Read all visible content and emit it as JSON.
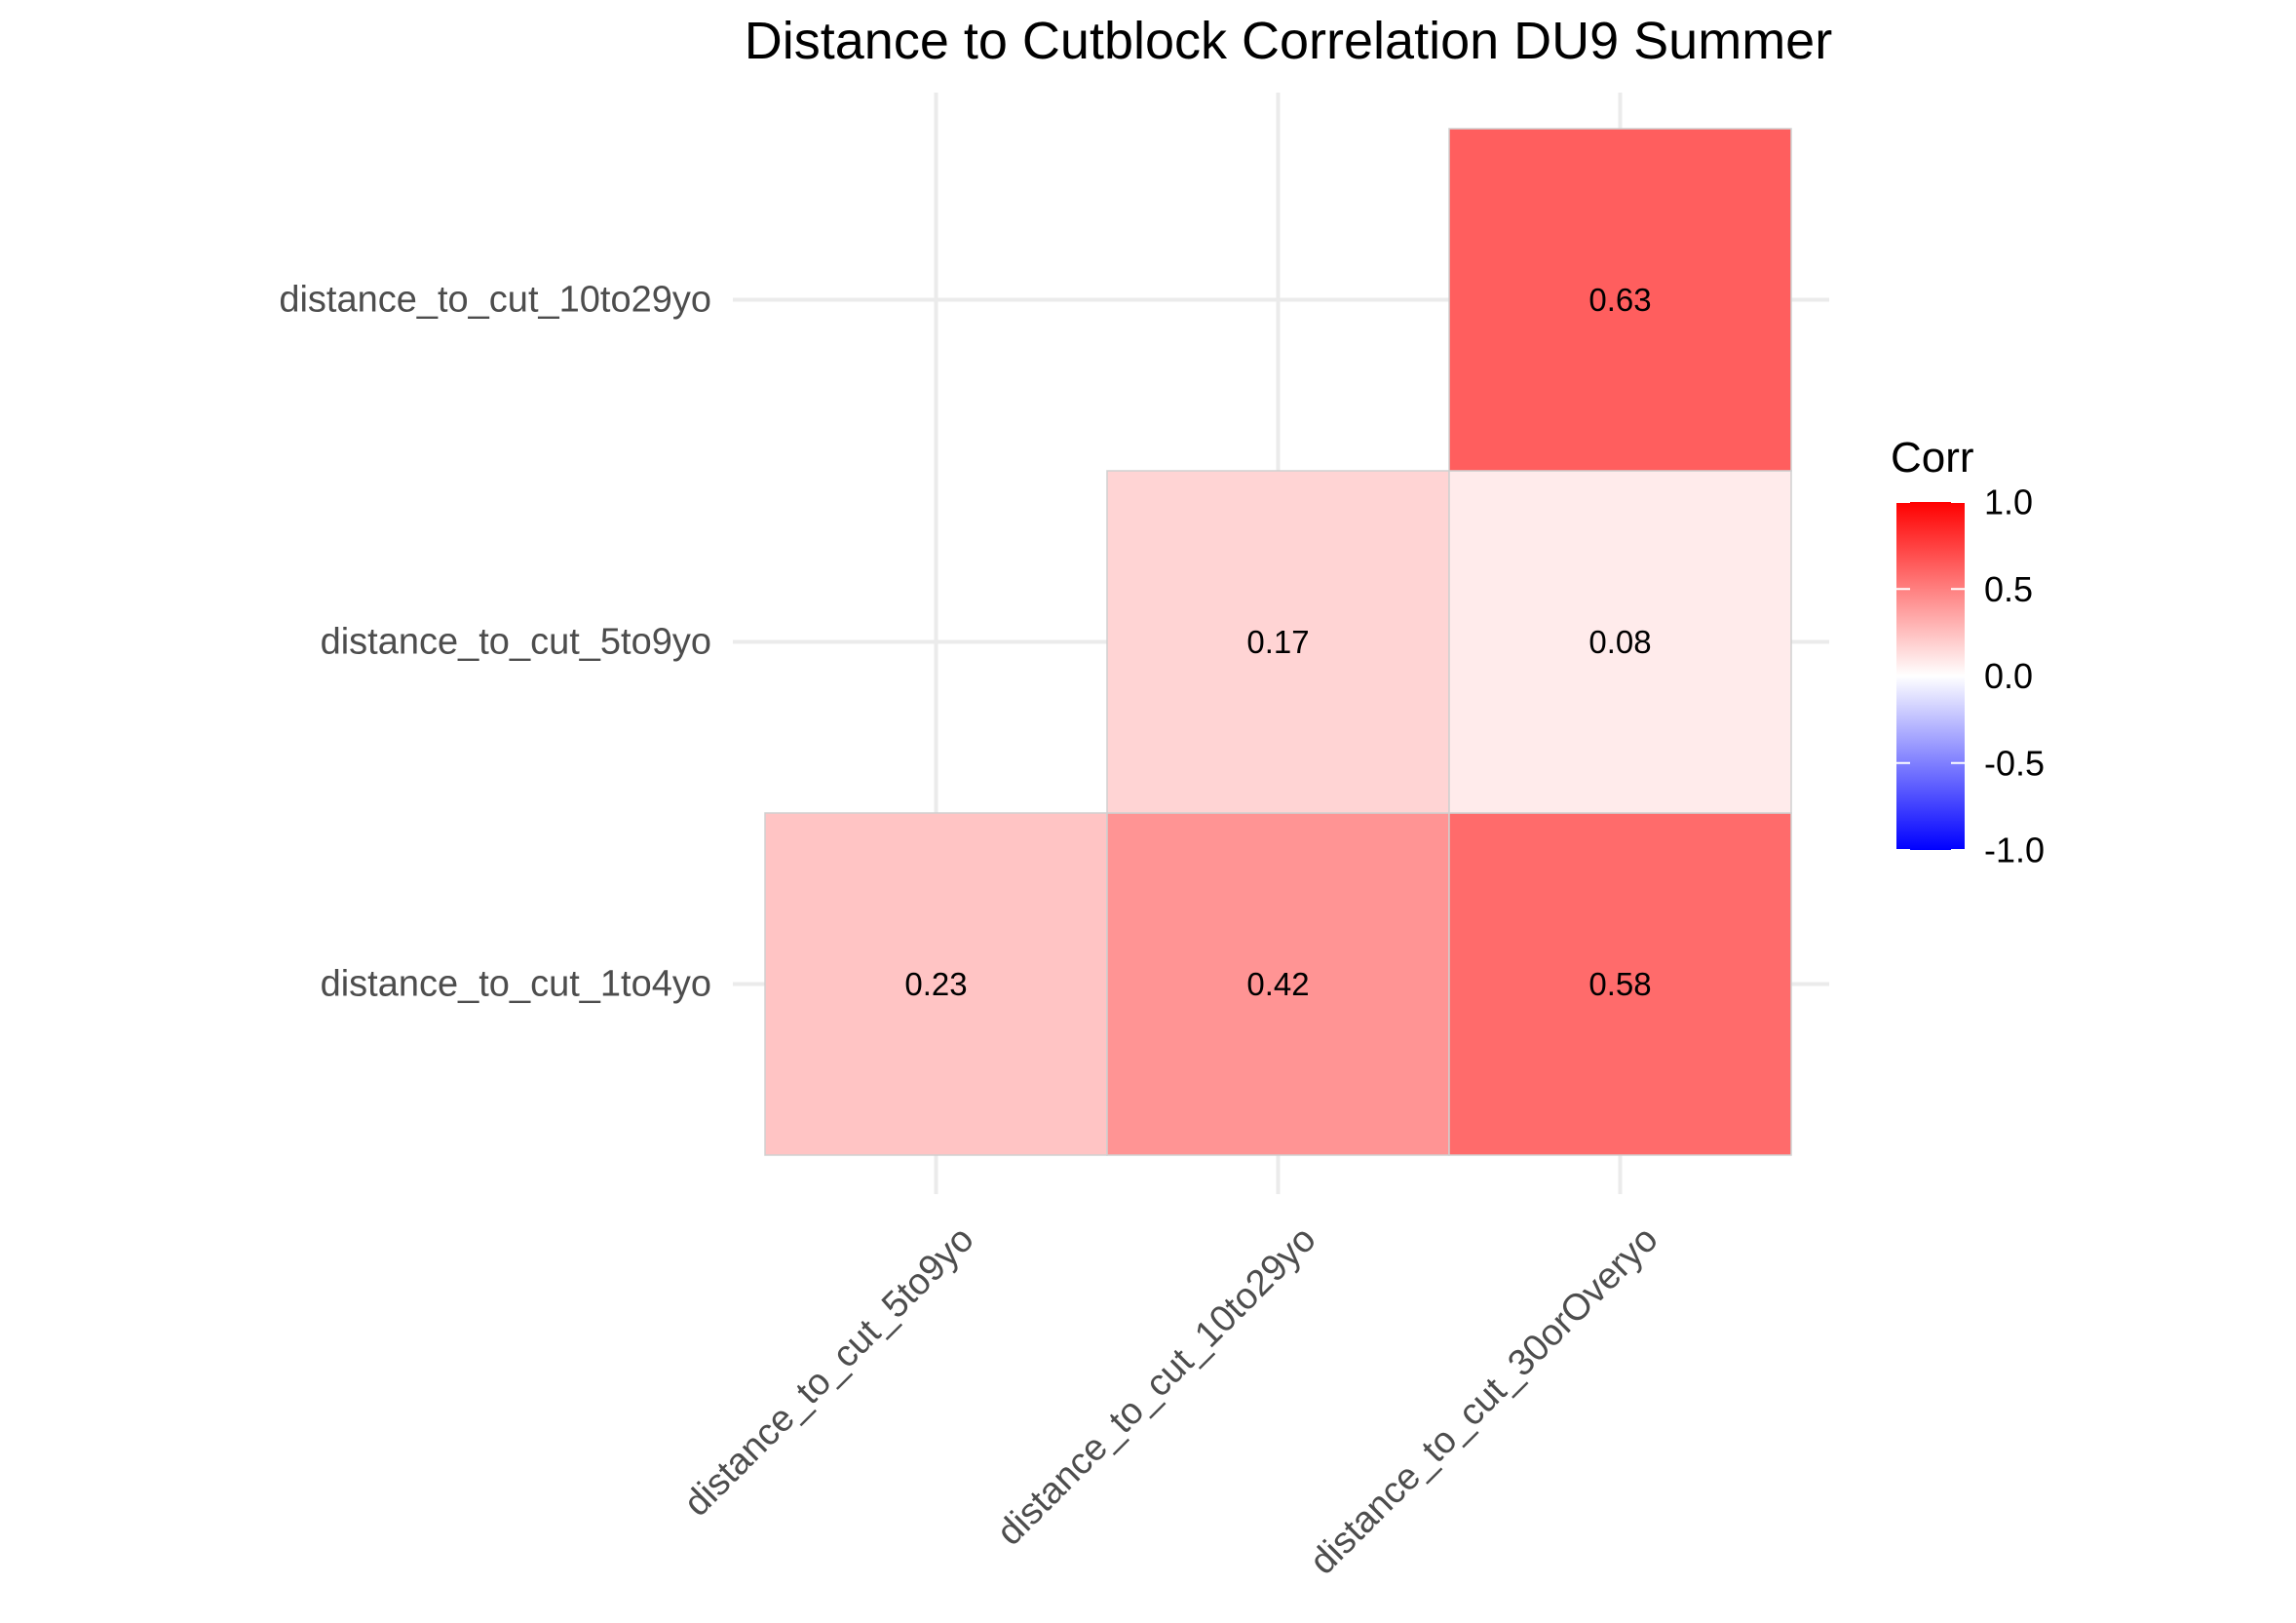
{
  "chart_data": {
    "type": "heatmap",
    "title": "Distance to Cutblock Correlation DU9 Summer",
    "xlabel": "",
    "ylabel": "",
    "x_categories": [
      "distance_to_cut_5to9yo",
      "distance_to_cut_10to29yo",
      "distance_to_cut_30orOveryo"
    ],
    "y_categories": [
      "distance_to_cut_1to4yo",
      "distance_to_cut_5to9yo",
      "distance_to_cut_10to29yo"
    ],
    "cells": [
      {
        "x": "distance_to_cut_5to9yo",
        "y": "distance_to_cut_1to4yo",
        "value": 0.23,
        "label": "0.23"
      },
      {
        "x": "distance_to_cut_10to29yo",
        "y": "distance_to_cut_1to4yo",
        "value": 0.42,
        "label": "0.42"
      },
      {
        "x": "distance_to_cut_30orOveryo",
        "y": "distance_to_cut_1to4yo",
        "value": 0.58,
        "label": "0.58"
      },
      {
        "x": "distance_to_cut_10to29yo",
        "y": "distance_to_cut_5to9yo",
        "value": 0.17,
        "label": "0.17"
      },
      {
        "x": "distance_to_cut_30orOveryo",
        "y": "distance_to_cut_5to9yo",
        "value": 0.08,
        "label": "0.08"
      },
      {
        "x": "distance_to_cut_30orOveryo",
        "y": "distance_to_cut_10to29yo",
        "value": 0.63,
        "label": "0.63"
      }
    ],
    "legend": {
      "title": "Corr",
      "ticks": [
        1.0,
        0.5,
        0.0,
        -0.5,
        -1.0
      ],
      "tick_labels": [
        "1.0",
        "0.5",
        "0.0",
        "-0.5",
        "-1.0"
      ],
      "range": [
        -1,
        1
      ],
      "placement": "right"
    },
    "colors": {
      "low": "#0000ff",
      "mid": "#ffffff",
      "high": "#ff0000"
    },
    "grid": true
  }
}
